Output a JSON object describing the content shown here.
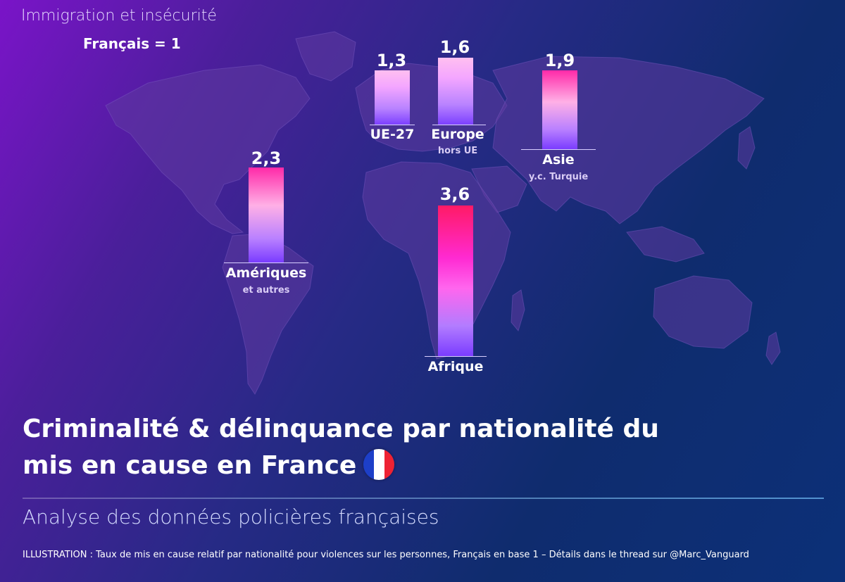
{
  "header": {
    "topic": "Immigration et insécurité",
    "baseline_note": "Français = 1"
  },
  "chart_data": {
    "type": "bar",
    "ylim": [
      0,
      3.6
    ],
    "grid": false,
    "legend": "none",
    "bars": [
      {
        "key": "ue27",
        "value_label": "1,3",
        "value": 1.3,
        "label": "UE-27",
        "sublabel": ""
      },
      {
        "key": "europe",
        "value_label": "1,6",
        "value": 1.6,
        "label": "Europe",
        "sublabel": "hors UE"
      },
      {
        "key": "asie",
        "value_label": "1,9",
        "value": 1.9,
        "label": "Asie",
        "sublabel": "y.c. Turquie"
      },
      {
        "key": "ameriques",
        "value_label": "2,3",
        "value": 2.3,
        "label": "Amériques",
        "sublabel": "et autres"
      },
      {
        "key": "afrique",
        "value_label": "3,6",
        "value": 3.6,
        "label": "Afrique",
        "sublabel": ""
      }
    ]
  },
  "main": {
    "title_line1": "Criminalité & délinquance par nationalité du",
    "title_line2": "mis en cause en France",
    "subtitle": "Analyse des données policières françaises",
    "footer": "ILLUSTRATION : Taux de mis en cause relatif par nationalité pour violences sur les personnes, Français en base 1 – Détails dans le thread sur @Marc_Vanguard"
  },
  "colors": {
    "flag_blue": "#1d3fc8",
    "flag_white": "#ffffff",
    "flag_red": "#ee2233"
  },
  "icons": {
    "flag": "france-flag-icon",
    "map": "world-map-icon"
  }
}
